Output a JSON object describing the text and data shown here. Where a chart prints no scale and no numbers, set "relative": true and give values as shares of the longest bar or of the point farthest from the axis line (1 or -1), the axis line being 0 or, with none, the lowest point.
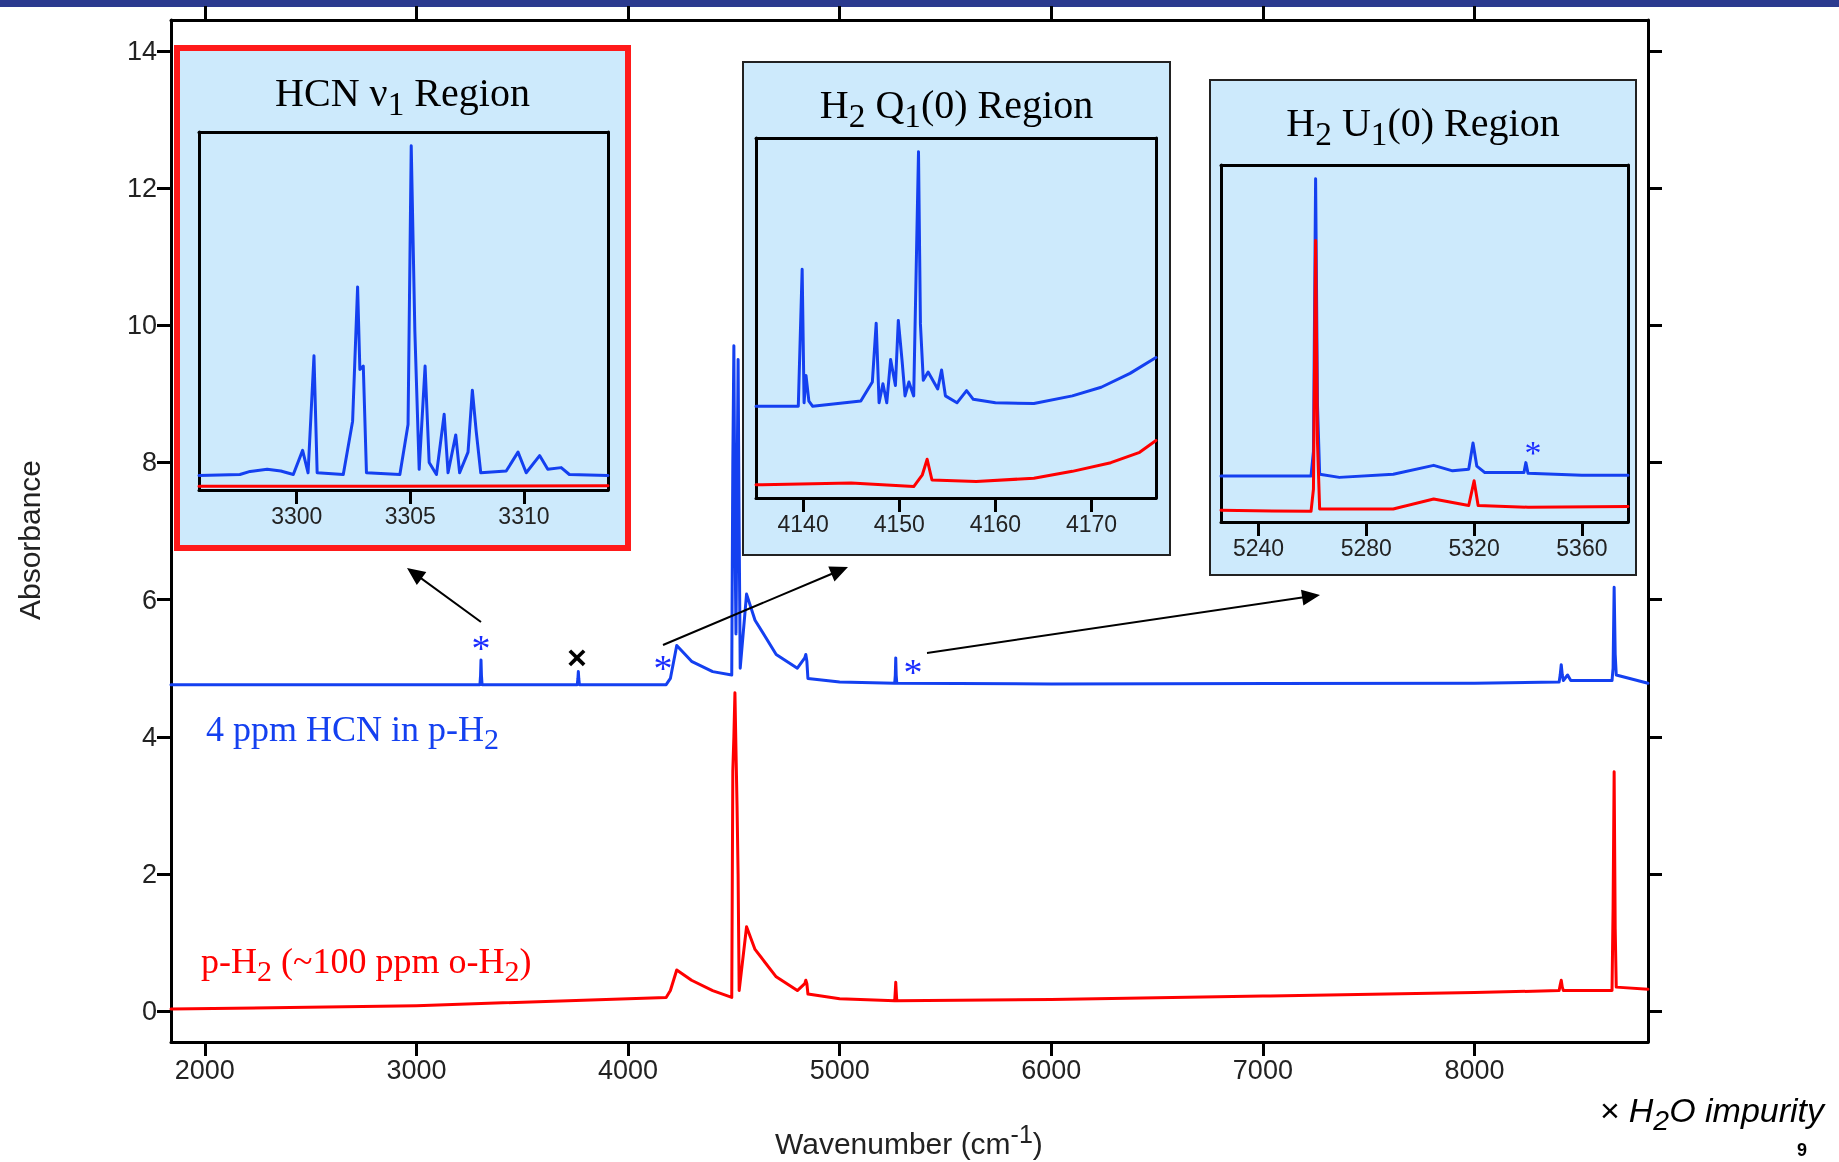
{
  "chart_data": [
    {
      "type": "line",
      "xlabel": "Wavenumber (cm$^{-1}$)",
      "ylabel": "Absorbance",
      "xlim": [
        1840,
        8820
      ],
      "xticks": [
        2000,
        3000,
        4000,
        5000,
        6000,
        7000,
        8000
      ],
      "ylim": [
        -0.45,
        14.45
      ],
      "yticks": [
        0,
        2,
        4,
        6,
        8,
        10,
        12,
        14
      ],
      "series": [
        {
          "name": "4 ppm HCN in p-H$_{2}$",
          "color": "#1440f0",
          "x": [
            1840,
            3300,
            3303,
            3305,
            3307,
            3310,
            3760,
            3763,
            3765,
            3767,
            3770,
            4180,
            4200,
            4230,
            4300,
            4400,
            4490,
            4495,
            4500,
            4505,
            4510,
            4520,
            4525,
            4530,
            4560,
            4600,
            4700,
            4800,
            4835,
            4840,
            4845,
            4850,
            5000,
            5260,
            5263,
            5265,
            5267,
            5270,
            6000,
            8000,
            8400,
            8405,
            8410,
            8415,
            8420,
            8440,
            8455,
            8650,
            8655,
            8660,
            8665,
            8670,
            8820
          ],
          "values": [
            4.76,
            4.76,
            4.9,
            5.12,
            4.9,
            4.76,
            4.76,
            4.85,
            4.95,
            4.85,
            4.76,
            4.76,
            4.85,
            5.33,
            5.1,
            4.95,
            4.9,
            8,
            9.7,
            7,
            5.5,
            9.5,
            7,
            5,
            6.08,
            5.7,
            5.2,
            5,
            5.15,
            5.2,
            5.1,
            4.85,
            4.8,
            4.78,
            4.9,
            5.15,
            4.9,
            4.78,
            4.77,
            4.78,
            4.8,
            4.9,
            5.05,
            4.9,
            4.82,
            4.9,
            4.82,
            4.82,
            5,
            6.18,
            5.2,
            4.9,
            4.78
          ]
        },
        {
          "name": "p-H$_{2}$ (~100 ppm o-H$_{2}$)",
          "color": "#ff0000",
          "x": [
            1840,
            3000,
            4180,
            4200,
            4230,
            4300,
            4400,
            4490,
            4495,
            4500,
            4505,
            4510,
            4515,
            4520,
            4525,
            4560,
            4600,
            4700,
            4800,
            4835,
            4840,
            4845,
            4850,
            5000,
            5260,
            5263,
            5265,
            5267,
            5270,
            6000,
            7000,
            8000,
            8400,
            8405,
            8410,
            8415,
            8420,
            8650,
            8655,
            8660,
            8665,
            8670,
            8820
          ],
          "values": [
            0.03,
            0.08,
            0.2,
            0.3,
            0.6,
            0.45,
            0.3,
            0.2,
            3.5,
            4.0,
            4.64,
            3.8,
            3.0,
            2.0,
            0.3,
            1.23,
            0.9,
            0.5,
            0.3,
            0.4,
            0.45,
            0.4,
            0.25,
            0.18,
            0.15,
            0.3,
            0.42,
            0.3,
            0.15,
            0.17,
            0.22,
            0.27,
            0.3,
            0.38,
            0.45,
            0.35,
            0.3,
            0.3,
            1.5,
            3.49,
            1.2,
            0.35,
            0.32
          ]
        }
      ],
      "annotations": [
        "*",
        "×",
        "*",
        "*",
        "× H$_{2}$O impurity",
        "9"
      ]
    },
    {
      "type": "line",
      "title": "HCN ν$_{1}$ Region",
      "relative": true,
      "xlim": [
        3295.7,
        3313.7
      ],
      "xticks": [
        3300,
        3305,
        3310
      ],
      "tick_labels": "x",
      "series": [
        {
          "color": "#1440f0",
          "x": [
            3295.7,
            3297.5,
            3297.95,
            3298.7,
            3299.3,
            3299.85,
            3300.26,
            3300.5,
            3300.76,
            3300.9,
            3302.05,
            3302.46,
            3302.68,
            3302.78,
            3302.93,
            3303.07,
            3304.54,
            3304.9,
            3305.04,
            3305.2,
            3305.39,
            3305.65,
            3305.83,
            3306.15,
            3306.49,
            3306.66,
            3307.0,
            3307.17,
            3307.54,
            3307.73,
            3307.9,
            3308.1,
            3309.22,
            3309.74,
            3310.1,
            3310.69,
            3311.05,
            3311.64,
            3312.0,
            3313.7
          ],
          "values": [
            0.042,
            0.045,
            0.054,
            0.06,
            0.055,
            0.045,
            0.115,
            0.05,
            0.39,
            0.05,
            0.045,
            0.2,
            0.59,
            0.35,
            0.36,
            0.05,
            0.045,
            0.19,
            1.0,
            0.46,
            0.06,
            0.36,
            0.08,
            0.045,
            0.22,
            0.05,
            0.16,
            0.05,
            0.11,
            0.29,
            0.17,
            0.05,
            0.055,
            0.11,
            0.05,
            0.1,
            0.06,
            0.065,
            0.045,
            0.042
          ]
        },
        {
          "color": "#ff0000",
          "x": [
            3295.7,
            3304,
            3313.7
          ],
          "values": [
            0.011,
            0.011,
            0.012
          ]
        }
      ]
    },
    {
      "type": "line",
      "title": "H$_{2}$ Q$_{1}$(0) Region",
      "relative": true,
      "xlim": [
        4135.1,
        4176.7
      ],
      "xticks": [
        4140,
        4150,
        4160,
        4170
      ],
      "tick_labels": "x",
      "series": [
        {
          "color": "#1440f0",
          "x": [
            4135.1,
            4139.5,
            4139.9,
            4140.1,
            4140.3,
            4140.6,
            4141,
            4146,
            4147.2,
            4147.6,
            4147.9,
            4148.3,
            4148.7,
            4149.1,
            4149.6,
            4149.9,
            4150.3,
            4150.6,
            4151.0,
            4151.5,
            4152.0,
            4152.2,
            4152.5,
            4153.0,
            4154,
            4154.4,
            4154.8,
            4156,
            4157,
            4157.7,
            4160,
            4164,
            4168,
            4171,
            4174,
            4176.7
          ],
          "values": [
            0.265,
            0.265,
            0.661,
            0.275,
            0.354,
            0.28,
            0.265,
            0.28,
            0.335,
            0.505,
            0.275,
            0.33,
            0.275,
            0.4,
            0.325,
            0.513,
            0.394,
            0.295,
            0.335,
            0.295,
            1.0,
            0.503,
            0.34,
            0.364,
            0.315,
            0.37,
            0.295,
            0.275,
            0.31,
            0.285,
            0.275,
            0.273,
            0.295,
            0.32,
            0.36,
            0.406
          ]
        },
        {
          "color": "#ff0000",
          "x": [
            4135.1,
            4145,
            4151.5,
            4152.4,
            4152.9,
            4153.4,
            4158,
            4164,
            4168,
            4172,
            4175,
            4176.7
          ],
          "values": [
            0.038,
            0.043,
            0.033,
            0.067,
            0.112,
            0.052,
            0.048,
            0.057,
            0.077,
            0.102,
            0.132,
            0.166
          ]
        }
      ]
    },
    {
      "type": "line",
      "title": "H$_{2}$ U$_{1}$(0) Region",
      "relative": true,
      "xlim": [
        5226.1,
        5377.1
      ],
      "xticks": [
        5240,
        5280,
        5320,
        5360
      ],
      "tick_labels": "x",
      "series": [
        {
          "color": "#1440f0",
          "x": [
            5226.1,
            5259.5,
            5260.4,
            5261.2,
            5261.9,
            5262.7,
            5270,
            5290,
            5305,
            5312,
            5318,
            5319.6,
            5321,
            5324,
            5338.5,
            5339.2,
            5340,
            5360,
            5377.1
          ],
          "values": [
            0.134,
            0.134,
            0.206,
            1.0,
            0.34,
            0.139,
            0.13,
            0.139,
            0.165,
            0.149,
            0.154,
            0.23,
            0.163,
            0.144,
            0.144,
            0.173,
            0.142,
            0.136,
            0.136
          ]
        },
        {
          "color": "#ff0000",
          "x": [
            5226.1,
            5259.5,
            5260.4,
            5261.2,
            5261.9,
            5262.7,
            5290,
            5305,
            5318,
            5320,
            5321.5,
            5340,
            5377.1
          ],
          "values": [
            0.034,
            0.031,
            0.096,
            0.82,
            0.23,
            0.038,
            0.038,
            0.067,
            0.048,
            0.12,
            0.048,
            0.043,
            0.045
          ]
        }
      ],
      "annotations": [
        "*"
      ]
    }
  ]
}
